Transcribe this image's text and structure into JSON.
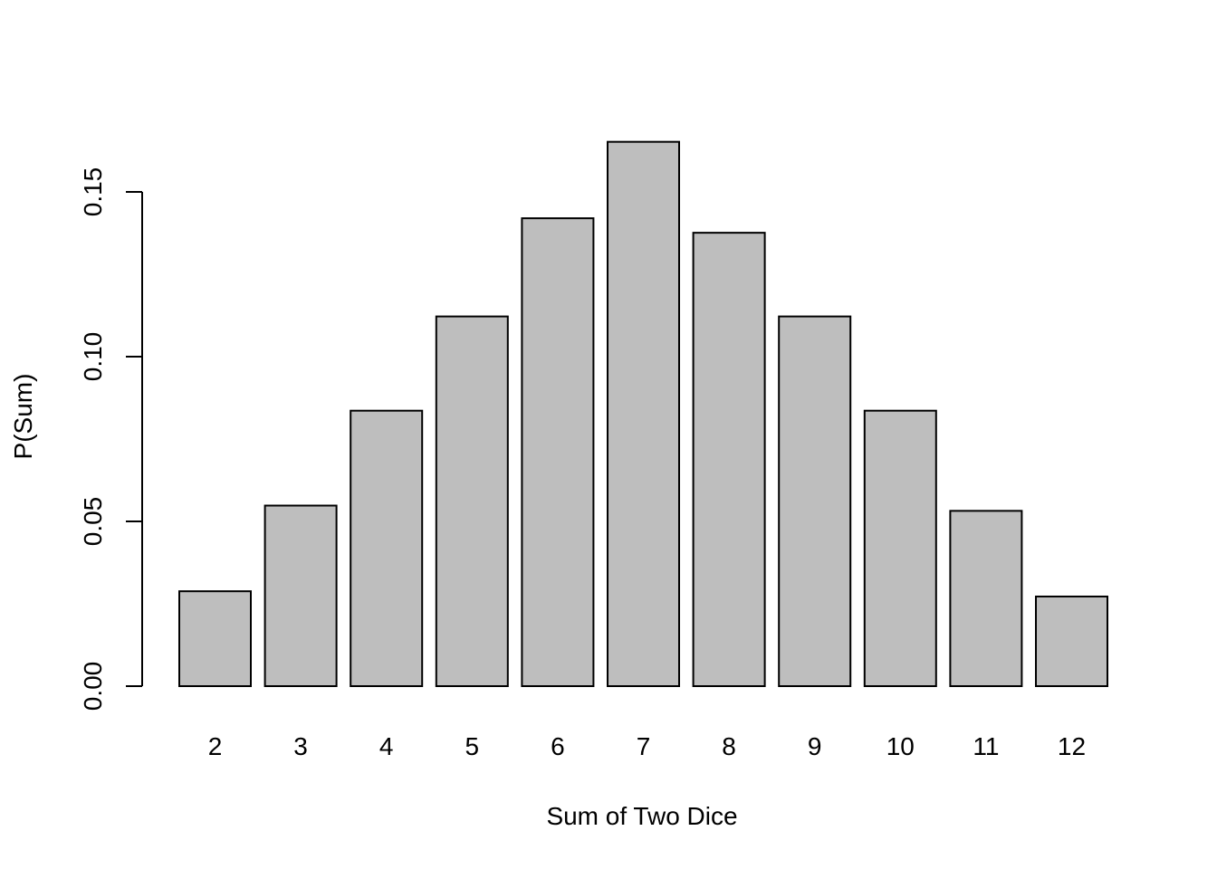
{
  "chart_data": {
    "type": "bar",
    "title": "",
    "xlabel": "Sum of Two Dice",
    "ylabel": "P(Sum)",
    "categories": [
      "2",
      "3",
      "4",
      "5",
      "6",
      "7",
      "8",
      "9",
      "10",
      "11",
      "12"
    ],
    "values": [
      0.0288,
      0.0548,
      0.0836,
      0.1122,
      0.142,
      0.1652,
      0.1376,
      0.1122,
      0.0836,
      0.0532,
      0.0272
    ],
    "ylim": [
      0,
      0.15
    ],
    "yticks": [
      "0.00",
      "0.05",
      "0.10",
      "0.15"
    ],
    "grid": false,
    "colors": {
      "bar_fill": "#bebebe",
      "bar_stroke": "#000000"
    }
  }
}
